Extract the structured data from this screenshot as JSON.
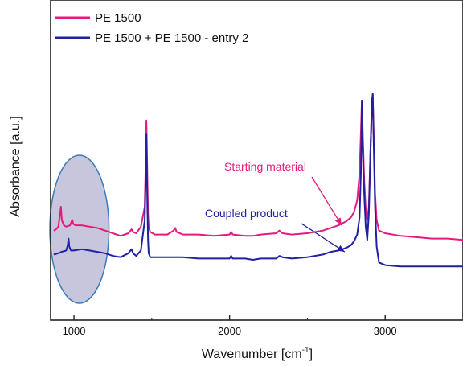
{
  "chart_data": {
    "type": "line",
    "xlabel": "Wavenumber [cm",
    "xlabel_sup": "-1",
    "xlabel_end": "]",
    "ylabel": "Absorbance [a.u.]",
    "xlim": [
      850,
      3500
    ],
    "x_ticks": [
      1000,
      2000,
      3000
    ],
    "x_tick_labels": [
      "1000",
      "2000",
      "3000"
    ],
    "y_ticks_shown": false,
    "grid": false,
    "legend_position": "top-left",
    "series": [
      {
        "name": "PE 1500",
        "color": "#e8197d",
        "x": [
          870,
          885,
          900,
          910,
          916,
          922,
          935,
          950,
          975,
          985,
          990,
          995,
          1010,
          1050,
          1100,
          1150,
          1200,
          1250,
          1300,
          1350,
          1370,
          1380,
          1400,
          1430,
          1455,
          1462,
          1465,
          1468,
          1472,
          1476,
          1480,
          1490,
          1520,
          1600,
          1640,
          1650,
          1660,
          1700,
          1800,
          1900,
          2000,
          2010,
          2020,
          2100,
          2150,
          2200,
          2300,
          2320,
          2340,
          2400,
          2500,
          2600,
          2650,
          2700,
          2750,
          2780,
          2800,
          2820,
          2835,
          2845,
          2850,
          2855,
          2865,
          2875,
          2885,
          2895,
          2905,
          2915,
          2920,
          2925,
          2935,
          2945,
          2960,
          3000,
          3100,
          3200,
          3300,
          3400,
          3500
        ],
        "y": [
          0.02,
          0.03,
          0.05,
          0.14,
          0.2,
          0.1,
          0.06,
          0.05,
          0.06,
          0.09,
          0.1,
          0.07,
          0.06,
          0.06,
          0.05,
          0.04,
          0.02,
          0.0,
          -0.02,
          0.0,
          0.03,
          0.01,
          0.0,
          0.05,
          0.2,
          0.6,
          0.85,
          0.7,
          0.4,
          0.15,
          0.05,
          0.01,
          -0.01,
          -0.01,
          0.02,
          0.04,
          0.01,
          -0.01,
          -0.01,
          -0.02,
          -0.01,
          0.01,
          -0.01,
          -0.02,
          -0.02,
          -0.01,
          0.0,
          0.02,
          0.0,
          -0.01,
          0.0,
          0.02,
          0.04,
          0.06,
          0.09,
          0.12,
          0.16,
          0.25,
          0.45,
          0.8,
          1.0,
          0.8,
          0.4,
          0.18,
          0.1,
          0.2,
          0.6,
          1.0,
          1.05,
          0.8,
          0.3,
          0.1,
          0.02,
          0.0,
          -0.02,
          -0.03,
          -0.04,
          -0.04,
          -0.05
        ]
      },
      {
        "name": "PE 1500 + PE 1500 - entry 2",
        "color": "#2020a0",
        "x": [
          870,
          900,
          920,
          950,
          960,
          965,
          970,
          980,
          1000,
          1050,
          1100,
          1150,
          1200,
          1250,
          1300,
          1350,
          1370,
          1380,
          1400,
          1430,
          1455,
          1462,
          1465,
          1468,
          1472,
          1476,
          1480,
          1490,
          1520,
          1600,
          1700,
          1800,
          1900,
          2000,
          2010,
          2020,
          2100,
          2150,
          2200,
          2300,
          2320,
          2340,
          2400,
          2500,
          2600,
          2650,
          2700,
          2750,
          2780,
          2800,
          2820,
          2835,
          2845,
          2850,
          2855,
          2865,
          2875,
          2885,
          2895,
          2905,
          2915,
          2920,
          2925,
          2935,
          2945,
          2960,
          3000,
          3100,
          3200,
          3300,
          3400,
          3500
        ],
        "y": [
          -0.16,
          -0.15,
          -0.14,
          -0.13,
          -0.09,
          -0.04,
          -0.1,
          -0.13,
          -0.13,
          -0.12,
          -0.13,
          -0.14,
          -0.15,
          -0.17,
          -0.18,
          -0.15,
          -0.12,
          -0.15,
          -0.17,
          -0.13,
          0.1,
          0.5,
          0.75,
          0.55,
          0.2,
          -0.05,
          -0.15,
          -0.18,
          -0.18,
          -0.18,
          -0.18,
          -0.19,
          -0.19,
          -0.19,
          -0.17,
          -0.19,
          -0.19,
          -0.2,
          -0.19,
          -0.19,
          -0.17,
          -0.18,
          -0.19,
          -0.18,
          -0.16,
          -0.14,
          -0.13,
          -0.11,
          -0.09,
          -0.06,
          -0.01,
          0.12,
          0.5,
          1.0,
          0.7,
          0.3,
          0.05,
          -0.05,
          0.15,
          0.6,
          1.0,
          1.05,
          0.75,
          0.2,
          -0.1,
          -0.22,
          -0.24,
          -0.25,
          -0.25,
          -0.25,
          -0.25,
          -0.25
        ]
      }
    ],
    "annotations": [
      {
        "text": "Starting material",
        "color": "#e8197d",
        "arrow_to": [
          2720,
          0.06
        ]
      },
      {
        "text": "Coupled product",
        "color": "#2020a0",
        "arrow_to": [
          2740,
          -0.14
        ]
      }
    ],
    "highlight": {
      "shape": "ellipse",
      "center_x": 1035,
      "x_radius": 190,
      "fill": "#c8c6dc",
      "stroke": "#3c7ab8"
    }
  }
}
